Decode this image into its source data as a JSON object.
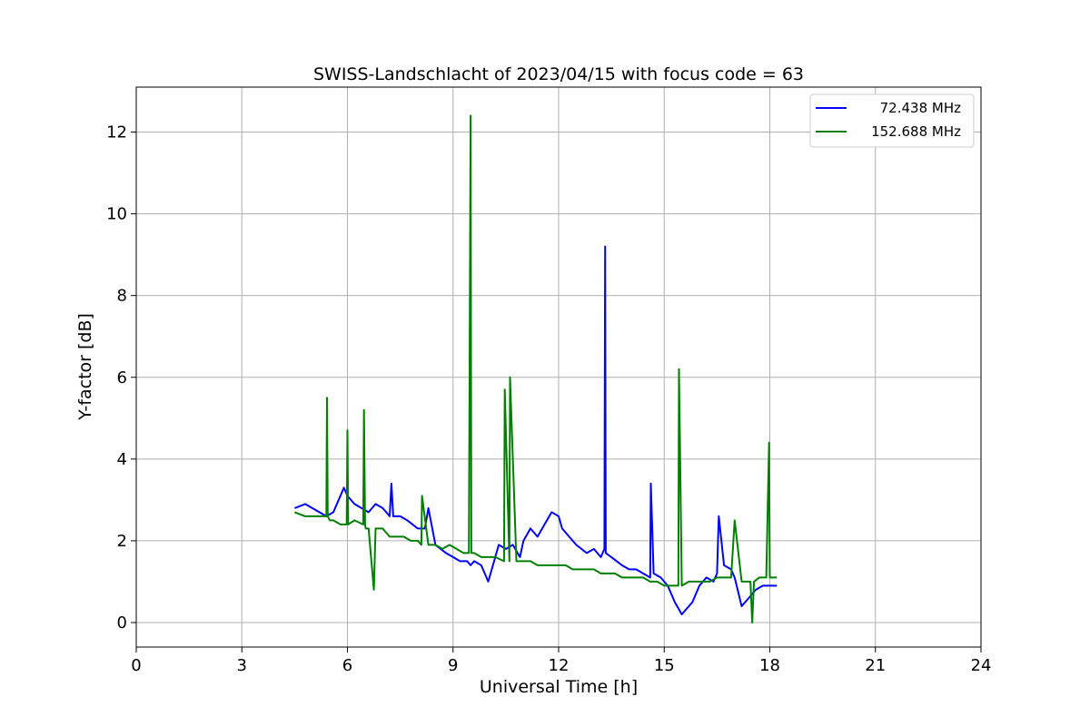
{
  "chart_data": {
    "type": "line",
    "title": "SWISS-Landschlacht of 2023/04/15 with focus code = 63",
    "xlabel": "Universal Time [h]",
    "ylabel": "Y-factor [dB]",
    "xlim": [
      0,
      24
    ],
    "ylim": [
      -0.6,
      13.1
    ],
    "xticks": [
      0,
      3,
      6,
      9,
      12,
      15,
      18,
      21,
      24
    ],
    "yticks": [
      0,
      2,
      4,
      6,
      8,
      10,
      12
    ],
    "grid": true,
    "legend_position": "top-right",
    "series": [
      {
        "name": "72.438 MHz",
        "color": "#0000ff",
        "x": [
          4.5,
          4.8,
          5.0,
          5.2,
          5.4,
          5.6,
          5.8,
          5.9,
          6.0,
          6.2,
          6.4,
          6.6,
          6.8,
          7.0,
          7.2,
          7.25,
          7.3,
          7.5,
          7.7,
          8.0,
          8.2,
          8.3,
          8.5,
          8.8,
          9.0,
          9.2,
          9.4,
          9.5,
          9.6,
          9.8,
          10.0,
          10.1,
          10.3,
          10.5,
          10.7,
          10.9,
          11.0,
          11.2,
          11.4,
          11.6,
          11.8,
          12.0,
          12.1,
          12.3,
          12.5,
          12.8,
          13.0,
          13.2,
          13.3,
          13.32,
          13.34,
          13.5,
          13.8,
          14.0,
          14.2,
          14.4,
          14.6,
          14.62,
          14.7,
          14.9,
          15.1,
          15.3,
          15.5,
          15.6,
          15.8,
          16.0,
          16.2,
          16.4,
          16.5,
          16.55,
          16.7,
          16.9,
          17.0,
          17.2,
          17.4,
          17.6,
          17.8,
          18.0,
          18.2
        ],
        "y": [
          2.8,
          2.9,
          2.8,
          2.7,
          2.6,
          2.7,
          3.1,
          3.3,
          3.1,
          2.9,
          2.8,
          2.7,
          2.9,
          2.8,
          2.6,
          3.4,
          2.6,
          2.6,
          2.5,
          2.3,
          2.3,
          2.8,
          1.9,
          1.7,
          1.6,
          1.5,
          1.5,
          1.4,
          1.5,
          1.4,
          1.0,
          1.3,
          1.9,
          1.8,
          1.9,
          1.6,
          2.0,
          2.3,
          2.1,
          2.4,
          2.7,
          2.6,
          2.3,
          2.1,
          1.9,
          1.7,
          1.8,
          1.6,
          1.8,
          9.2,
          1.7,
          1.6,
          1.4,
          1.3,
          1.3,
          1.2,
          1.1,
          3.4,
          1.2,
          1.1,
          0.9,
          0.5,
          0.2,
          0.3,
          0.5,
          0.9,
          1.1,
          1.0,
          1.2,
          2.6,
          1.4,
          1.3,
          1.1,
          0.4,
          0.6,
          0.8,
          0.9,
          0.9,
          0.9
        ]
      },
      {
        "name": "152.688 MHz",
        "color": "#008000",
        "x": [
          4.5,
          4.8,
          5.0,
          5.2,
          5.4,
          5.42,
          5.44,
          5.5,
          5.6,
          5.8,
          5.98,
          6.0,
          6.02,
          6.2,
          6.45,
          6.47,
          6.5,
          6.52,
          6.6,
          6.75,
          6.8,
          7.0,
          7.2,
          7.4,
          7.6,
          7.8,
          8.0,
          8.1,
          8.12,
          8.3,
          8.5,
          8.7,
          8.9,
          9.1,
          9.3,
          9.45,
          9.5,
          9.52,
          9.6,
          9.8,
          10.0,
          10.2,
          10.45,
          10.47,
          10.6,
          10.62,
          10.8,
          11.0,
          11.2,
          11.4,
          11.6,
          11.8,
          12.0,
          12.2,
          12.4,
          12.6,
          12.8,
          13.0,
          13.2,
          13.4,
          13.6,
          13.8,
          14.0,
          14.2,
          14.4,
          14.6,
          14.8,
          15.0,
          15.2,
          15.4,
          15.42,
          15.5,
          15.7,
          15.9,
          16.1,
          16.3,
          16.5,
          16.7,
          16.9,
          17.0,
          17.2,
          17.45,
          17.5,
          17.55,
          17.7,
          17.9,
          17.98,
          18.0,
          18.1,
          18.2
        ],
        "y": [
          2.7,
          2.6,
          2.6,
          2.6,
          2.6,
          5.5,
          2.6,
          2.5,
          2.5,
          2.4,
          2.4,
          4.7,
          2.4,
          2.5,
          2.4,
          5.2,
          2.4,
          2.3,
          2.3,
          0.8,
          2.3,
          2.3,
          2.1,
          2.1,
          2.1,
          2.0,
          2.0,
          1.9,
          3.1,
          1.9,
          1.9,
          1.8,
          1.9,
          1.8,
          1.7,
          1.7,
          12.4,
          1.7,
          1.7,
          1.6,
          1.6,
          1.6,
          1.5,
          5.7,
          1.5,
          6.0,
          1.5,
          1.5,
          1.5,
          1.4,
          1.4,
          1.4,
          1.4,
          1.4,
          1.3,
          1.3,
          1.3,
          1.3,
          1.2,
          1.2,
          1.2,
          1.1,
          1.1,
          1.1,
          1.1,
          1.0,
          1.0,
          0.9,
          0.9,
          0.9,
          6.2,
          0.9,
          1.0,
          1.0,
          1.0,
          1.0,
          1.1,
          1.1,
          1.1,
          2.5,
          1.0,
          1.0,
          0.0,
          1.0,
          1.1,
          1.1,
          4.4,
          1.1,
          1.1,
          1.1
        ]
      }
    ]
  }
}
